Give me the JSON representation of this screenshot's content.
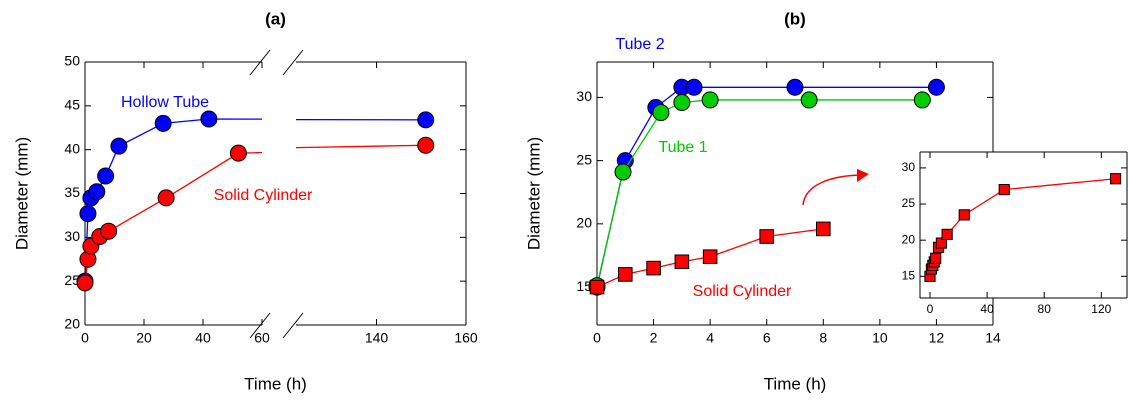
{
  "chart_data": [
    {
      "type": "line",
      "title": "(a)",
      "x_label": "Time (h)",
      "y_label": "Diameter (mm)",
      "x_segments": [
        {
          "xlim": [
            0,
            60
          ],
          "xticks": [
            0,
            20,
            40,
            60
          ]
        },
        {
          "xlim": [
            122,
            160
          ],
          "xticks": [
            140,
            160
          ]
        }
      ],
      "ylim": [
        20,
        50
      ],
      "yticks": [
        20,
        25,
        30,
        35,
        40,
        45,
        50
      ],
      "series": [
        {
          "name": "Hollow Tube",
          "color": "#0000ff",
          "marker": "circle",
          "x": [
            0,
            1,
            2,
            4,
            7,
            11.5,
            26.5,
            42,
            151
          ],
          "values": [
            25,
            32.7,
            34.5,
            35.2,
            37,
            40.4,
            43,
            43.5,
            43.4
          ]
        },
        {
          "name": "Solid Cylinder",
          "color": "#ff0000",
          "marker": "circle",
          "x": [
            0,
            1,
            2,
            5,
            8,
            27.5,
            52,
            151
          ],
          "values": [
            24.8,
            27.5,
            29,
            30.1,
            30.7,
            34.5,
            39.6,
            40.5
          ]
        }
      ]
    },
    {
      "type": "line",
      "title": "(b)",
      "x_label": "Time (h)",
      "y_label": "Diameter (mm)",
      "xlim": [
        0,
        14
      ],
      "xticks": [
        0,
        2,
        4,
        6,
        8,
        10,
        12,
        14
      ],
      "ylim": [
        12,
        32.8
      ],
      "yticks": [
        15,
        20,
        25,
        30
      ],
      "series": [
        {
          "name": "Tube 2",
          "color": "#0000ff",
          "marker": "circle",
          "x": [
            0,
            1,
            2.08,
            3,
            3.43,
            7,
            12
          ],
          "values": [
            15,
            25,
            29.2,
            30.8,
            30.8,
            30.8,
            30.8
          ]
        },
        {
          "name": "Tube 1",
          "color": "#00cc00",
          "marker": "circle",
          "x": [
            0,
            0.92,
            2.26,
            3,
            4,
            7.5,
            11.5
          ],
          "values": [
            15.1,
            24.1,
            28.8,
            29.6,
            29.8,
            29.8,
            29.8
          ]
        },
        {
          "name": "Solid Cylinder",
          "color": "#ff0000",
          "marker": "square",
          "x": [
            0,
            1,
            2,
            3,
            4,
            6,
            8
          ],
          "values": [
            15,
            16,
            16.5,
            17,
            17.4,
            19,
            19.6
          ]
        }
      ]
    },
    {
      "type": "line",
      "xlim": [
        -7,
        138
      ],
      "xticks": [
        0,
        40,
        80,
        120
      ],
      "ylim": [
        12,
        32.2
      ],
      "yticks": [
        15,
        20,
        25,
        30
      ],
      "series": [
        {
          "color": "#ff0000",
          "marker": "square",
          "x": [
            0,
            1,
            2,
            3,
            4,
            6,
            8,
            12,
            24,
            52,
            130
          ],
          "values": [
            15,
            16,
            16.5,
            17,
            17.5,
            19,
            19.6,
            20.8,
            23.5,
            27,
            28.5
          ]
        }
      ]
    }
  ]
}
